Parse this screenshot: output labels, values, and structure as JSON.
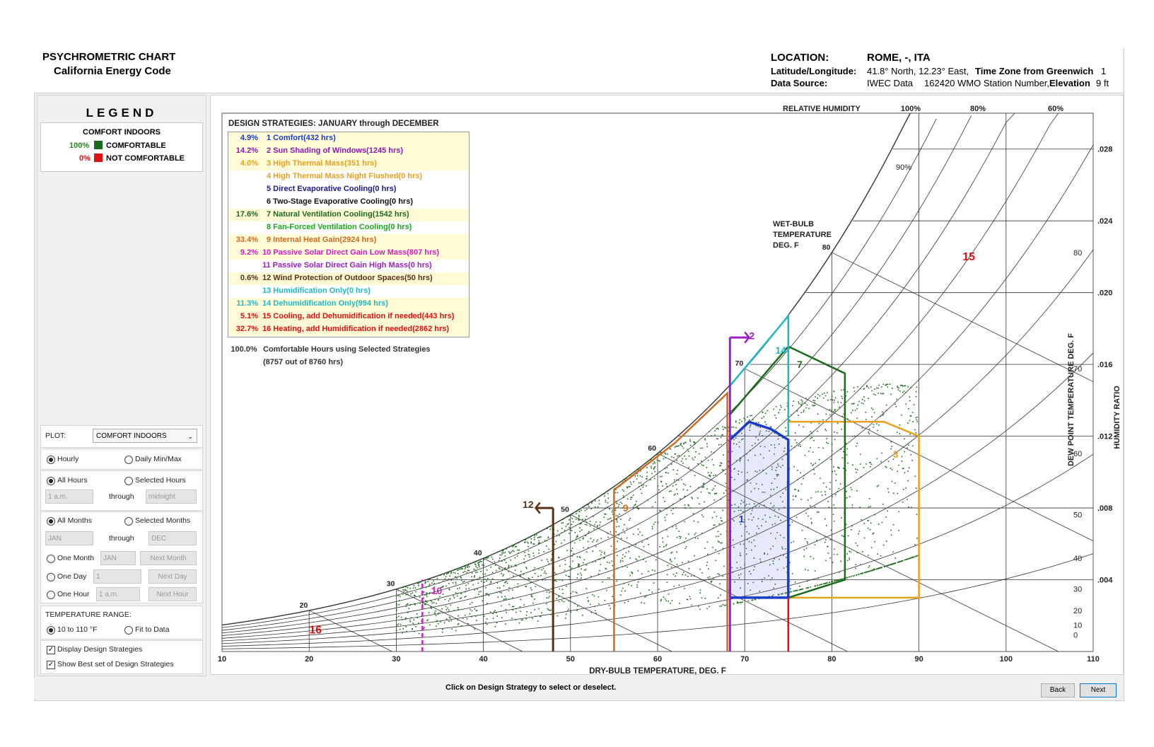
{
  "header": {
    "title": "PSYCHROMETRIC CHART",
    "subtitle": "California Energy Code",
    "location_label": "LOCATION:",
    "location_value": "ROME, -, ITA",
    "latlon_label": "Latitude/Longitude:",
    "latlon_value": "41.8° North, 12.23° East,",
    "tz_label": "Time Zone from Greenwich",
    "tz_value": "1",
    "source_label": "Data Source:",
    "source_value": "IWEC Data",
    "station_value": "162420 WMO Station Number,",
    "elevation_label": "Elevation",
    "elevation_value": "9 ft"
  },
  "legend": {
    "title": "LEGEND",
    "heading": "COMFORT INDOORS",
    "items": [
      {
        "pct": "100%",
        "label": "COMFORTABLE",
        "color": "#1a6b1a"
      },
      {
        "pct": "0%",
        "label": "NOT COMFORTABLE",
        "color": "#e01010"
      }
    ]
  },
  "controls": {
    "plot_label": "PLOT:",
    "plot_value": "COMFORT INDOORS",
    "hourly": "Hourly",
    "daily": "Daily Min/Max",
    "all_hours": "All Hours",
    "selected_hours": "Selected Hours",
    "hour_from": "1 a.m.",
    "through": "through",
    "hour_to": "midnight",
    "all_months": "All Months",
    "selected_months": "Selected Months",
    "month_from": "JAN",
    "month_to": "DEC",
    "one_month": "One Month",
    "one_month_val": "JAN",
    "next_month": "Next Month",
    "one_day": "One Day",
    "one_day_val": "1",
    "next_day": "Next Day",
    "one_hour": "One Hour",
    "one_hour_val": "1 a.m.",
    "next_hour": "Next Hour",
    "temp_range_label": "TEMPERATURE RANGE:",
    "temp_range_a": "10 to 110 °F",
    "temp_range_b": "Fit to Data",
    "display_strategies": "Display Design Strategies",
    "best_set": "Show Best set of Design Strategies"
  },
  "strategies": {
    "title": "DESIGN STRATEGIES:  JANUARY through DECEMBER",
    "items": [
      {
        "pct": "4.9%",
        "label": "1  Comfort(432 hrs)",
        "color": "#1a3cc8",
        "hl": true
      },
      {
        "pct": "14.2%",
        "label": "2  Sun Shading of Windows(1245 hrs)",
        "color": "#8a1ab0",
        "hl": true
      },
      {
        "pct": "4.0%",
        "label": "3  High Thermal Mass(351 hrs)",
        "color": "#e8a020",
        "hl": true
      },
      {
        "pct": "",
        "label": "4  High Thermal Mass Night Flushed(0 hrs)",
        "color": "#e8a020",
        "hl": false
      },
      {
        "pct": "",
        "label": "5  Direct Evaporative Cooling(0 hrs)",
        "color": "#1a1a8a",
        "hl": false
      },
      {
        "pct": "",
        "label": "6  Two-Stage Evaporative Cooling(0 hrs)",
        "color": "#111111",
        "hl": false
      },
      {
        "pct": "17.6%",
        "label": "7  Natural Ventilation Cooling(1542 hrs)",
        "color": "#1a6b1a",
        "hl": true
      },
      {
        "pct": "",
        "label": "8  Fan-Forced Ventilation Cooling(0 hrs)",
        "color": "#1aa81a",
        "hl": false
      },
      {
        "pct": "33.4%",
        "label": "9  Internal Heat Gain(2924 hrs)",
        "color": "#d06a20",
        "hl": true
      },
      {
        "pct": "9.2%",
        "label": "10  Passive Solar Direct Gain Low Mass(807 hrs)",
        "color": "#d020c0",
        "hl": true
      },
      {
        "pct": "",
        "label": "11  Passive Solar Direct Gain High Mass(0 hrs)",
        "color": "#9a20c0",
        "hl": false
      },
      {
        "pct": "0.6%",
        "label": "12  Wind Protection of Outdoor Spaces(50 hrs)",
        "color": "#5a3010",
        "hl": true
      },
      {
        "pct": "",
        "label": "13  Humidification Only(0 hrs)",
        "color": "#20b8c8",
        "hl": false
      },
      {
        "pct": "11.3%",
        "label": "14  Dehumidification Only(994 hrs)",
        "color": "#20b8c8",
        "hl": true
      },
      {
        "pct": "5.1%",
        "label": "15  Cooling, add Dehumidification if needed(443 hrs)",
        "color": "#e01010",
        "hl": true
      },
      {
        "pct": "32.7%",
        "label": "16  Heating, add Humidification if needed(2862 hrs)",
        "color": "#e01010",
        "hl": true
      }
    ],
    "total_pct": "100.0%",
    "total_label": "Comfortable Hours using Selected Strategies",
    "total_sub": "(8757 out of 8760 hrs)"
  },
  "chart_data": {
    "type": "scatter",
    "xlabel": "DRY-BULB TEMPERATURE, DEG. F",
    "ylabel": "HUMIDITY RATIO",
    "y2label": "DEW POINT TEMPERATURE DEG. F",
    "rh_title": "RELATIVE HUMIDITY",
    "wb_title": [
      "WET-BULB",
      "TEMPERATURE",
      "DEG. F"
    ],
    "xlim": [
      10,
      110
    ],
    "ylim": [
      0,
      0.03
    ],
    "x_ticks": [
      "10",
      "20",
      "30",
      "40",
      "50",
      "60",
      "70",
      "80",
      "90",
      "100",
      "110"
    ],
    "y_ticks": [
      ".004",
      ".008",
      ".012",
      ".016",
      ".020",
      ".024",
      ".028"
    ],
    "dp_ticks": [
      "0",
      "10",
      "20",
      "30",
      "40",
      "50",
      "60",
      "70",
      "80"
    ],
    "rh_labels": [
      "100%",
      "80%",
      "60%"
    ],
    "rh_inner": "90%",
    "wb_ticks": [
      "20",
      "30",
      "40",
      "50",
      "60",
      "70",
      "80"
    ],
    "zone_labels": [
      "1",
      "2",
      "3",
      "7",
      "9",
      "10",
      "12",
      "14",
      "15",
      "16"
    ],
    "colors": {
      "comfortable": "#1a6b1a"
    }
  },
  "footer": {
    "hint": "Click on Design Strategy to select or deselect.",
    "back": "Back",
    "next": "Next"
  }
}
